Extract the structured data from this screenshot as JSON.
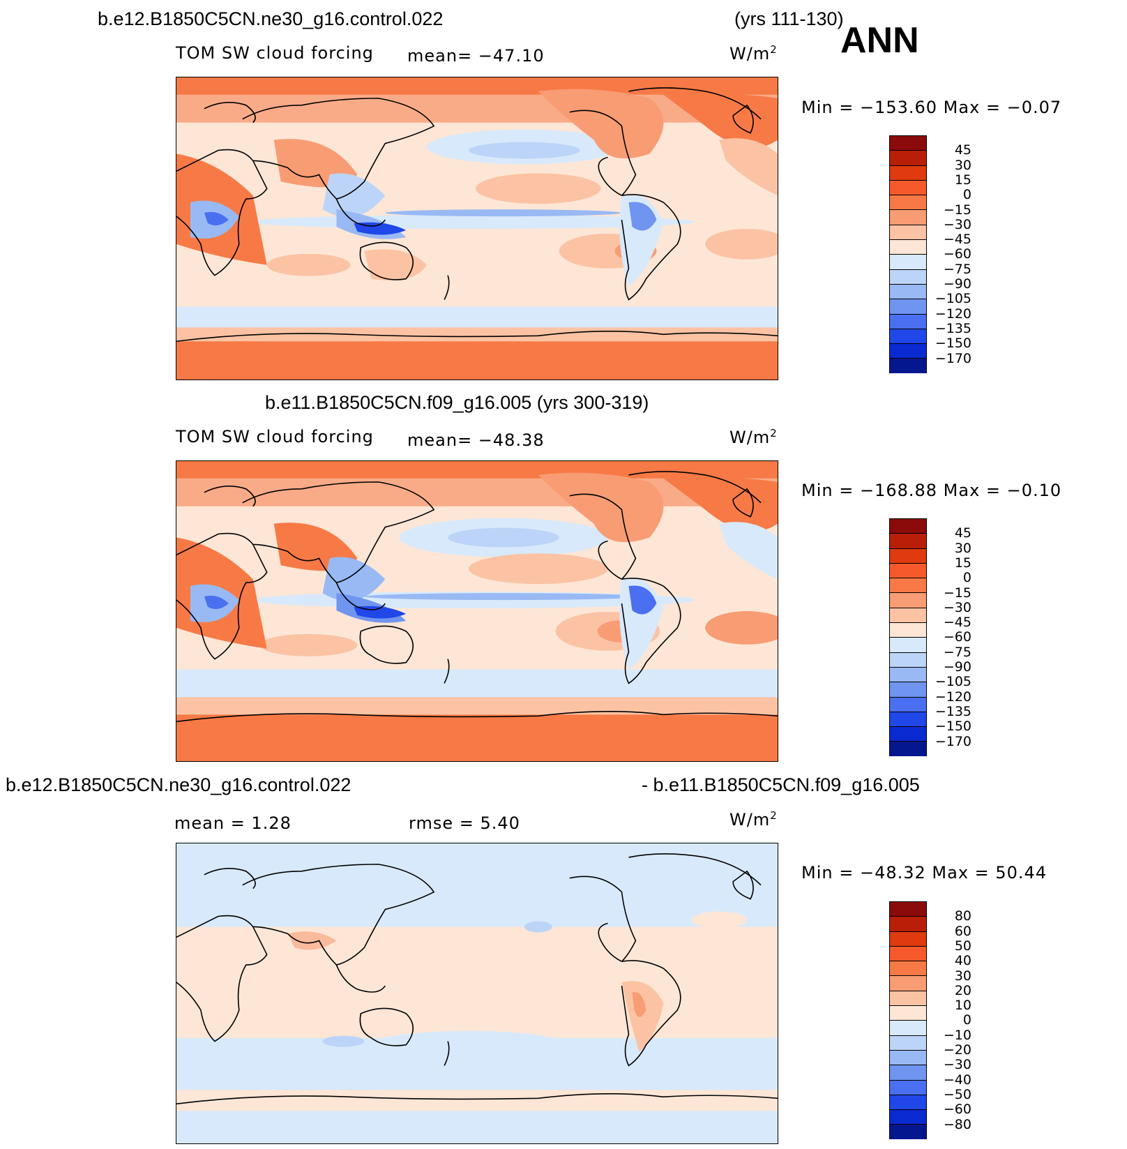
{
  "figure": {
    "season": "ANN"
  },
  "panels": [
    {
      "case_name": "b.e12.B1850C5CN.ne30_g16.control.022",
      "years": "(yrs 111-130)",
      "variable": "TOM SW cloud forcing",
      "mean_text": "mean= −47.10",
      "units_base": "W/m",
      "units_exp": "2",
      "min_max_text": "Min = −153.60 Max =  −0.07",
      "colorbar": {
        "labels": [
          "45",
          "30",
          "15",
          "0",
          "−15",
          "−30",
          "−45",
          "−60",
          "−75",
          "−90",
          "−105",
          "−120",
          "−135",
          "−150",
          "−170"
        ],
        "colors": [
          "#8b0a0a",
          "#b81e08",
          "#df3a10",
          "#f65a2c",
          "#f77a46",
          "#f89c74",
          "#fbc3a4",
          "#fde6d6",
          "#d8e9fb",
          "#bcd4f7",
          "#99b9f4",
          "#6f95f0",
          "#4a6ff0",
          "#2047e8",
          "#0a2ad2",
          "#04178f"
        ]
      }
    },
    {
      "case_name": "b.e11.B1850C5CN.f09_g16.005 (yrs 300-319)",
      "variable": "TOM SW cloud forcing",
      "mean_text": "mean= −48.38",
      "units_base": "W/m",
      "units_exp": "2",
      "min_max_text": "Min = −168.88 Max =  −0.10",
      "colorbar": {
        "labels": [
          "45",
          "30",
          "15",
          "0",
          "−15",
          "−30",
          "−45",
          "−60",
          "−75",
          "−90",
          "−105",
          "−120",
          "−135",
          "−150",
          "−170"
        ],
        "colors": [
          "#8b0a0a",
          "#b81e08",
          "#df3a10",
          "#f65a2c",
          "#f77a46",
          "#f89c74",
          "#fbc3a4",
          "#fde6d6",
          "#d8e9fb",
          "#bcd4f7",
          "#99b9f4",
          "#6f95f0",
          "#4a6ff0",
          "#2047e8",
          "#0a2ad2",
          "#04178f"
        ]
      }
    },
    {
      "case_name_left": "b.e12.B1850C5CN.ne30_g16.control.022",
      "case_name_right": "- b.e11.B1850C5CN.f09_g16.005",
      "mean_text": "mean =    1.28",
      "rmse_text": "rmse =    5.40",
      "units_base": "W/m",
      "units_exp": "2",
      "min_max_text": "Min = −48.32 Max =   50.44",
      "colorbar": {
        "labels": [
          "80",
          "60",
          "50",
          "40",
          "30",
          "20",
          "10",
          "0",
          "−10",
          "−20",
          "−30",
          "−40",
          "−50",
          "−60",
          "−80"
        ],
        "colors": [
          "#8b0a0a",
          "#b81e08",
          "#df3a10",
          "#f65a2c",
          "#f77a46",
          "#f89c74",
          "#fbc3a4",
          "#fde6d6",
          "#d8e9fb",
          "#bcd4f7",
          "#99b9f4",
          "#6f95f0",
          "#4a6ff0",
          "#2047e8",
          "#0a2ad2",
          "#04178f"
        ]
      }
    }
  ]
}
